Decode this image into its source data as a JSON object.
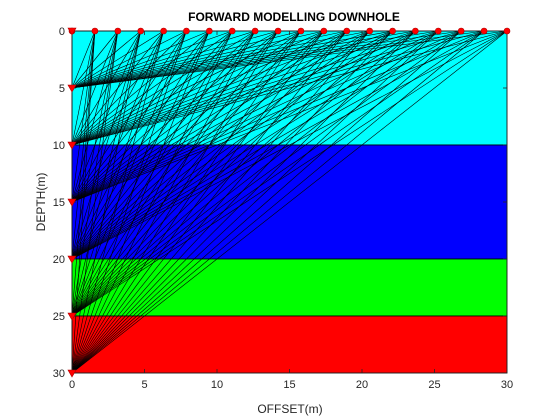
{
  "chart_data": {
    "type": "line",
    "title": "FORWARD MODELLING DOWNHOLE",
    "xlabel": "OFFSET(m)",
    "ylabel": "DEPTH(m)",
    "xlim": [
      0,
      30
    ],
    "ylim": [
      0,
      30
    ],
    "y_reversed": true,
    "grid": false,
    "x_ticks": [
      0,
      5,
      10,
      15,
      20,
      25,
      30
    ],
    "y_ticks": [
      0,
      5,
      10,
      15,
      20,
      25,
      30
    ],
    "layers": [
      {
        "top": 0,
        "bottom": 10,
        "color": "#00ffff"
      },
      {
        "top": 10,
        "bottom": 20,
        "color": "#0000ff"
      },
      {
        "top": 20,
        "bottom": 25,
        "color": "#00ff00"
      },
      {
        "top": 25,
        "bottom": 30,
        "color": "#ff0000"
      }
    ],
    "sources": {
      "depth": 0,
      "offsets": [
        0,
        1.58,
        3.16,
        4.74,
        6.32,
        7.89,
        9.47,
        11.05,
        12.63,
        14.21,
        15.79,
        17.37,
        18.95,
        20.53,
        22.11,
        23.68,
        25.26,
        26.84,
        28.42,
        30
      ],
      "color": "#ff0000"
    },
    "receivers": {
      "offset": 0,
      "depths": [
        0,
        5,
        10,
        15,
        20,
        25,
        30
      ],
      "color": "#ff0000"
    },
    "ray_color": "#000000"
  }
}
